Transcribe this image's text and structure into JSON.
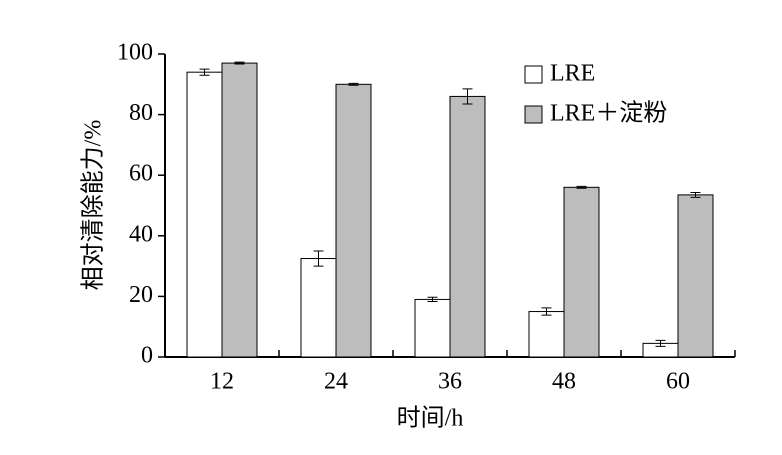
{
  "chart_data": {
    "type": "bar",
    "y_label": "相对清除能力/%",
    "x_label": "时间/h",
    "categories": [
      "12",
      "24",
      "36",
      "48",
      "60"
    ],
    "series": [
      {
        "name": "LRE",
        "color": "#ffffff",
        "values": [
          94,
          32.5,
          19,
          15,
          4.5
        ],
        "errors": [
          1,
          2.5,
          0.7,
          1.2,
          1
        ]
      },
      {
        "name": "LRE＋淀粉",
        "color": "#bdbdbd",
        "values": [
          97,
          90,
          86,
          56,
          53.5
        ],
        "errors": [
          0.3,
          0.3,
          2.5,
          0.3,
          0.8
        ]
      }
    ],
    "ylim": [
      0,
      100
    ],
    "yticks": [
      0,
      20,
      40,
      60,
      80,
      100
    ],
    "grid": false,
    "legend": "top-right"
  }
}
